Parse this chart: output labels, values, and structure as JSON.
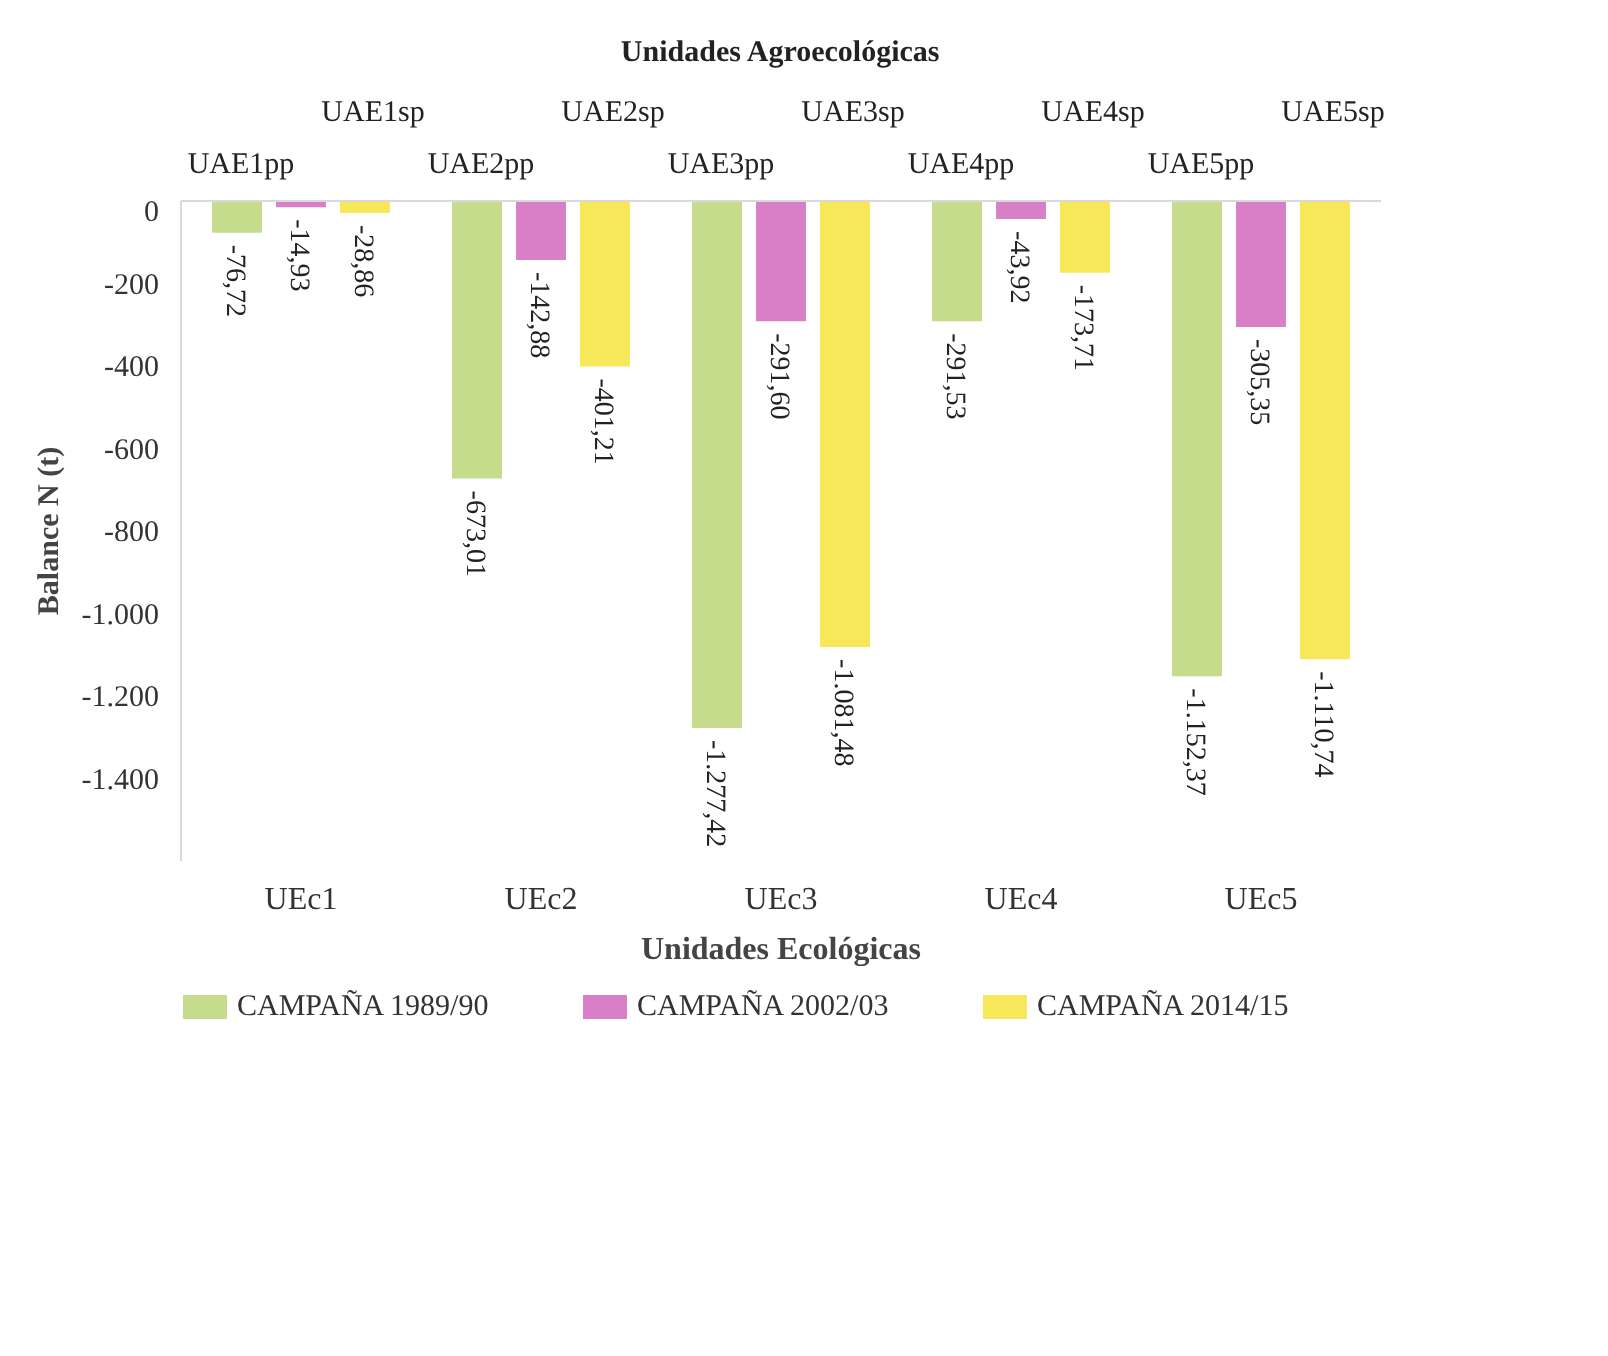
{
  "chart_data": {
    "type": "bar",
    "title": "Unidades Agroecológicas",
    "xlabel": "Unidades Ecológicas",
    "ylabel": "Balance N (t)",
    "categories": [
      "UEc1",
      "UEc2",
      "UEc3",
      "UEc4",
      "UEc5"
    ],
    "series": [
      {
        "name": "CAMPAÑA 1989/90",
        "color": "#c4dc8c",
        "values": [
          -76.72,
          -673.01,
          -1277.42,
          -291.53,
          -1152.37
        ],
        "value_labels": [
          "-76,72",
          "-673,01",
          "-1.277,42",
          "-291,53",
          "-1.152,37"
        ]
      },
      {
        "name": "CAMPAÑA 2002/03",
        "color": "#d97fc8",
        "values": [
          -14.93,
          -142.88,
          -291.6,
          -43.92,
          -305.35
        ],
        "value_labels": [
          "-14,93",
          "-142,88",
          "-291,60",
          "-43,92",
          "-305,35"
        ]
      },
      {
        "name": "CAMPAÑA 2014/15",
        "color": "#f7e85a",
        "values": [
          -28.86,
          -401.21,
          -1081.48,
          -173.71,
          -1110.74
        ],
        "value_labels": [
          "-28,86",
          "-401,21",
          "-1.081,48",
          "-173,71",
          "-1.110,74"
        ]
      }
    ],
    "ylim": [
      -1600,
      0
    ],
    "yticks": [
      0,
      {
        "value": -200,
        "label": "-200"
      },
      {
        "value": -400,
        "label": "-400"
      },
      {
        "value": -600,
        "label": "-600"
      },
      {
        "value": -800,
        "label": "-800"
      },
      {
        "value": -1000,
        "label": "-1.000"
      },
      {
        "value": -1200,
        "label": "-1.200"
      },
      {
        "value": -1400,
        "label": "-1.400"
      }
    ],
    "annotations": [
      "UAE1pp",
      "UAE1sp",
      "UAE2pp",
      "UAE2sp",
      "UAE3pp",
      "UAE3sp",
      "UAE4pp",
      "UAE4sp",
      "UAE5pp",
      "UAE5sp"
    ],
    "grid": false,
    "legend": "bottom"
  }
}
